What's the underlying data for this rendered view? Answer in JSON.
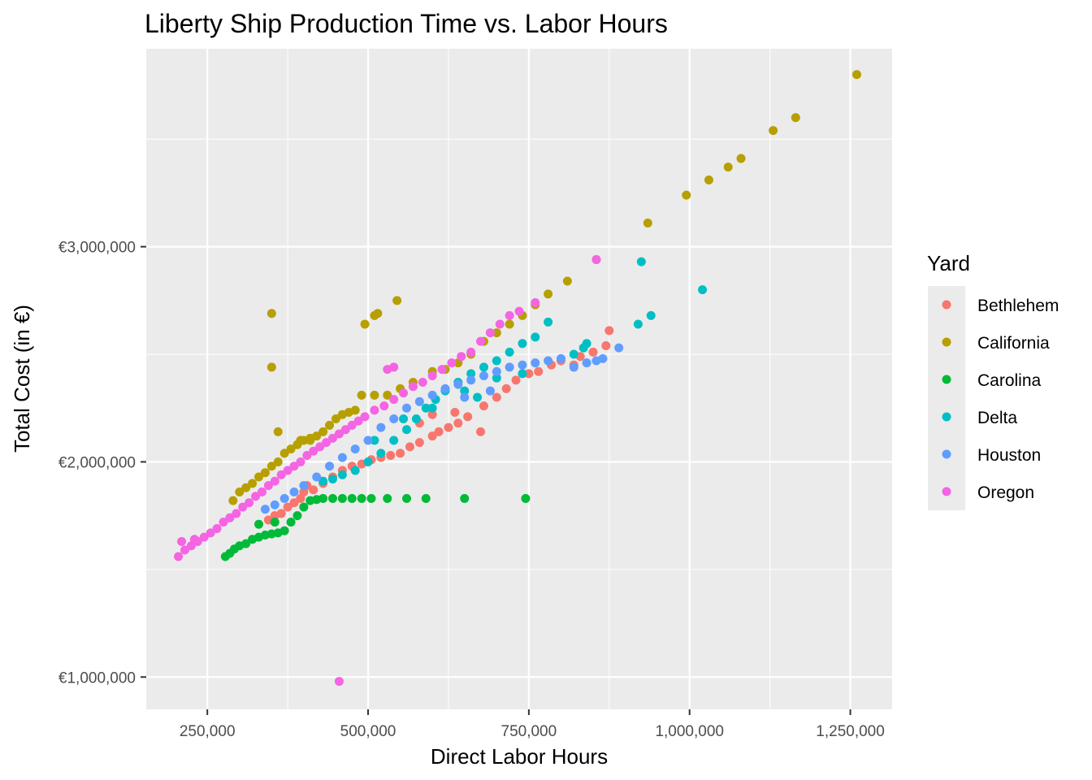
{
  "chart_data": {
    "type": "scatter",
    "title": "Liberty Ship Production Time vs. Labor Hours",
    "xlabel": "Direct Labor Hours",
    "ylabel": "Total Cost (in €)",
    "xlim": [
      155000,
      1315000
    ],
    "ylim": [
      850000,
      3920000
    ],
    "x_ticks": [
      250000,
      500000,
      750000,
      1000000,
      1250000
    ],
    "x_tick_labels": [
      "250,000",
      "500,000",
      "750,000",
      "1,000,000",
      "1,250,000"
    ],
    "y_ticks": [
      1000000,
      2000000,
      3000000
    ],
    "y_tick_labels": [
      "€1,000,000",
      "€2,000,000",
      "€3,000,000"
    ],
    "grid": true,
    "legend": {
      "title": "Yard",
      "position": "right"
    },
    "series": [
      {
        "name": "Bethlehem",
        "color": "#F8766D",
        "points": [
          [
            355000,
            1750000
          ],
          [
            375000,
            1790000
          ],
          [
            395000,
            1830000
          ],
          [
            405000,
            1890000
          ],
          [
            415000,
            1870000
          ],
          [
            430000,
            1900000
          ],
          [
            445000,
            1930000
          ],
          [
            460000,
            1960000
          ],
          [
            475000,
            1980000
          ],
          [
            490000,
            1990000
          ],
          [
            505000,
            2010000
          ],
          [
            520000,
            2020000
          ],
          [
            535000,
            2030000
          ],
          [
            550000,
            2040000
          ],
          [
            565000,
            2070000
          ],
          [
            580000,
            2090000
          ],
          [
            600000,
            2120000
          ],
          [
            610000,
            2140000
          ],
          [
            625000,
            2160000
          ],
          [
            640000,
            2180000
          ],
          [
            655000,
            2210000
          ],
          [
            675000,
            2140000
          ],
          [
            680000,
            2260000
          ],
          [
            700000,
            2300000
          ],
          [
            715000,
            2340000
          ],
          [
            730000,
            2380000
          ],
          [
            750000,
            2410000
          ],
          [
            765000,
            2420000
          ],
          [
            785000,
            2450000
          ],
          [
            800000,
            2470000
          ],
          [
            820000,
            2450000
          ],
          [
            830000,
            2490000
          ],
          [
            850000,
            2510000
          ],
          [
            870000,
            2540000
          ],
          [
            875000,
            2610000
          ],
          [
            600000,
            2220000
          ],
          [
            580000,
            2180000
          ],
          [
            635000,
            2230000
          ],
          [
            345000,
            1730000
          ],
          [
            365000,
            1760000
          ],
          [
            385000,
            1810000
          ],
          [
            400000,
            1860000
          ]
        ]
      },
      {
        "name": "California",
        "color": "#B79F00",
        "points": [
          [
            290000,
            1820000
          ],
          [
            300000,
            1860000
          ],
          [
            310000,
            1880000
          ],
          [
            320000,
            1900000
          ],
          [
            330000,
            1930000
          ],
          [
            340000,
            1950000
          ],
          [
            350000,
            1980000
          ],
          [
            360000,
            2000000
          ],
          [
            370000,
            2040000
          ],
          [
            380000,
            2060000
          ],
          [
            390000,
            2080000
          ],
          [
            400000,
            2100000
          ],
          [
            410000,
            2110000
          ],
          [
            420000,
            2120000
          ],
          [
            430000,
            2140000
          ],
          [
            440000,
            2170000
          ],
          [
            450000,
            2200000
          ],
          [
            460000,
            2220000
          ],
          [
            470000,
            2230000
          ],
          [
            480000,
            2240000
          ],
          [
            490000,
            2310000
          ],
          [
            510000,
            2310000
          ],
          [
            530000,
            2310000
          ],
          [
            550000,
            2340000
          ],
          [
            570000,
            2370000
          ],
          [
            600000,
            2420000
          ],
          [
            620000,
            2430000
          ],
          [
            640000,
            2460000
          ],
          [
            660000,
            2500000
          ],
          [
            680000,
            2560000
          ],
          [
            700000,
            2600000
          ],
          [
            720000,
            2640000
          ],
          [
            740000,
            2680000
          ],
          [
            760000,
            2730000
          ],
          [
            780000,
            2780000
          ],
          [
            810000,
            2840000
          ],
          [
            855000,
            2940000
          ],
          [
            935000,
            3110000
          ],
          [
            995000,
            3240000
          ],
          [
            1030000,
            3310000
          ],
          [
            1060000,
            3370000
          ],
          [
            1080000,
            3410000
          ],
          [
            1130000,
            3540000
          ],
          [
            1165000,
            3600000
          ],
          [
            1260000,
            3800000
          ],
          [
            350000,
            2690000
          ],
          [
            350000,
            2440000
          ],
          [
            495000,
            2640000
          ],
          [
            510000,
            2680000
          ],
          [
            515000,
            2690000
          ],
          [
            545000,
            2750000
          ],
          [
            360000,
            2140000
          ],
          [
            395000,
            2100000
          ],
          [
            410000,
            2100000
          ]
        ]
      },
      {
        "name": "Carolina",
        "color": "#00BA38",
        "points": [
          [
            278000,
            1560000
          ],
          [
            285000,
            1575000
          ],
          [
            292000,
            1595000
          ],
          [
            300000,
            1610000
          ],
          [
            310000,
            1620000
          ],
          [
            320000,
            1640000
          ],
          [
            330000,
            1650000
          ],
          [
            340000,
            1660000
          ],
          [
            350000,
            1665000
          ],
          [
            360000,
            1670000
          ],
          [
            370000,
            1680000
          ],
          [
            380000,
            1720000
          ],
          [
            390000,
            1750000
          ],
          [
            400000,
            1790000
          ],
          [
            410000,
            1820000
          ],
          [
            420000,
            1825000
          ],
          [
            430000,
            1830000
          ],
          [
            445000,
            1830000
          ],
          [
            460000,
            1830000
          ],
          [
            475000,
            1830000
          ],
          [
            490000,
            1830000
          ],
          [
            505000,
            1830000
          ],
          [
            530000,
            1830000
          ],
          [
            560000,
            1830000
          ],
          [
            590000,
            1830000
          ],
          [
            650000,
            1830000
          ],
          [
            745000,
            1830000
          ],
          [
            330000,
            1710000
          ],
          [
            355000,
            1720000
          ]
        ]
      },
      {
        "name": "Delta",
        "color": "#00BFC4",
        "points": [
          [
            430000,
            1910000
          ],
          [
            445000,
            1920000
          ],
          [
            460000,
            1940000
          ],
          [
            480000,
            1960000
          ],
          [
            500000,
            2000000
          ],
          [
            520000,
            2040000
          ],
          [
            540000,
            2100000
          ],
          [
            560000,
            2150000
          ],
          [
            575000,
            2200000
          ],
          [
            590000,
            2250000
          ],
          [
            605000,
            2290000
          ],
          [
            620000,
            2330000
          ],
          [
            640000,
            2370000
          ],
          [
            660000,
            2410000
          ],
          [
            680000,
            2440000
          ],
          [
            700000,
            2470000
          ],
          [
            720000,
            2510000
          ],
          [
            740000,
            2550000
          ],
          [
            760000,
            2580000
          ],
          [
            780000,
            2650000
          ],
          [
            820000,
            2500000
          ],
          [
            835000,
            2530000
          ],
          [
            840000,
            2550000
          ],
          [
            920000,
            2640000
          ],
          [
            925000,
            2930000
          ],
          [
            940000,
            2680000
          ],
          [
            1020000,
            2800000
          ],
          [
            650000,
            2330000
          ],
          [
            700000,
            2390000
          ],
          [
            740000,
            2410000
          ],
          [
            670000,
            2300000
          ],
          [
            600000,
            2250000
          ],
          [
            555000,
            2200000
          ],
          [
            510000,
            2100000
          ]
        ]
      },
      {
        "name": "Houston",
        "color": "#619CFF",
        "points": [
          [
            340000,
            1780000
          ],
          [
            355000,
            1800000
          ],
          [
            370000,
            1830000
          ],
          [
            385000,
            1860000
          ],
          [
            400000,
            1890000
          ],
          [
            420000,
            1930000
          ],
          [
            440000,
            1980000
          ],
          [
            460000,
            2020000
          ],
          [
            480000,
            2060000
          ],
          [
            500000,
            2100000
          ],
          [
            520000,
            2160000
          ],
          [
            540000,
            2200000
          ],
          [
            560000,
            2250000
          ],
          [
            580000,
            2280000
          ],
          [
            600000,
            2310000
          ],
          [
            620000,
            2340000
          ],
          [
            640000,
            2360000
          ],
          [
            660000,
            2380000
          ],
          [
            680000,
            2400000
          ],
          [
            700000,
            2420000
          ],
          [
            720000,
            2440000
          ],
          [
            740000,
            2450000
          ],
          [
            760000,
            2460000
          ],
          [
            780000,
            2470000
          ],
          [
            800000,
            2480000
          ],
          [
            820000,
            2440000
          ],
          [
            840000,
            2460000
          ],
          [
            855000,
            2470000
          ],
          [
            865000,
            2480000
          ],
          [
            890000,
            2530000
          ],
          [
            650000,
            2300000
          ],
          [
            690000,
            2330000
          ]
        ]
      },
      {
        "name": "Oregon",
        "color": "#F564E3",
        "points": [
          [
            205000,
            1560000
          ],
          [
            215000,
            1590000
          ],
          [
            225000,
            1610000
          ],
          [
            235000,
            1630000
          ],
          [
            245000,
            1650000
          ],
          [
            255000,
            1670000
          ],
          [
            265000,
            1690000
          ],
          [
            275000,
            1720000
          ],
          [
            285000,
            1740000
          ],
          [
            295000,
            1760000
          ],
          [
            305000,
            1790000
          ],
          [
            315000,
            1810000
          ],
          [
            325000,
            1840000
          ],
          [
            335000,
            1860000
          ],
          [
            345000,
            1890000
          ],
          [
            355000,
            1910000
          ],
          [
            365000,
            1940000
          ],
          [
            375000,
            1960000
          ],
          [
            385000,
            1980000
          ],
          [
            395000,
            2000000
          ],
          [
            405000,
            2030000
          ],
          [
            415000,
            2050000
          ],
          [
            425000,
            2070000
          ],
          [
            435000,
            2090000
          ],
          [
            445000,
            2110000
          ],
          [
            455000,
            2130000
          ],
          [
            465000,
            2150000
          ],
          [
            475000,
            2170000
          ],
          [
            485000,
            2190000
          ],
          [
            495000,
            2210000
          ],
          [
            510000,
            2240000
          ],
          [
            525000,
            2260000
          ],
          [
            540000,
            2290000
          ],
          [
            555000,
            2320000
          ],
          [
            570000,
            2350000
          ],
          [
            585000,
            2370000
          ],
          [
            600000,
            2400000
          ],
          [
            615000,
            2430000
          ],
          [
            630000,
            2460000
          ],
          [
            645000,
            2490000
          ],
          [
            660000,
            2510000
          ],
          [
            675000,
            2560000
          ],
          [
            690000,
            2600000
          ],
          [
            705000,
            2640000
          ],
          [
            720000,
            2680000
          ],
          [
            735000,
            2700000
          ],
          [
            760000,
            2740000
          ],
          [
            855000,
            2940000
          ],
          [
            455000,
            980000
          ],
          [
            530000,
            2430000
          ],
          [
            540000,
            2440000
          ],
          [
            210000,
            1630000
          ],
          [
            230000,
            1640000
          ]
        ]
      }
    ]
  }
}
